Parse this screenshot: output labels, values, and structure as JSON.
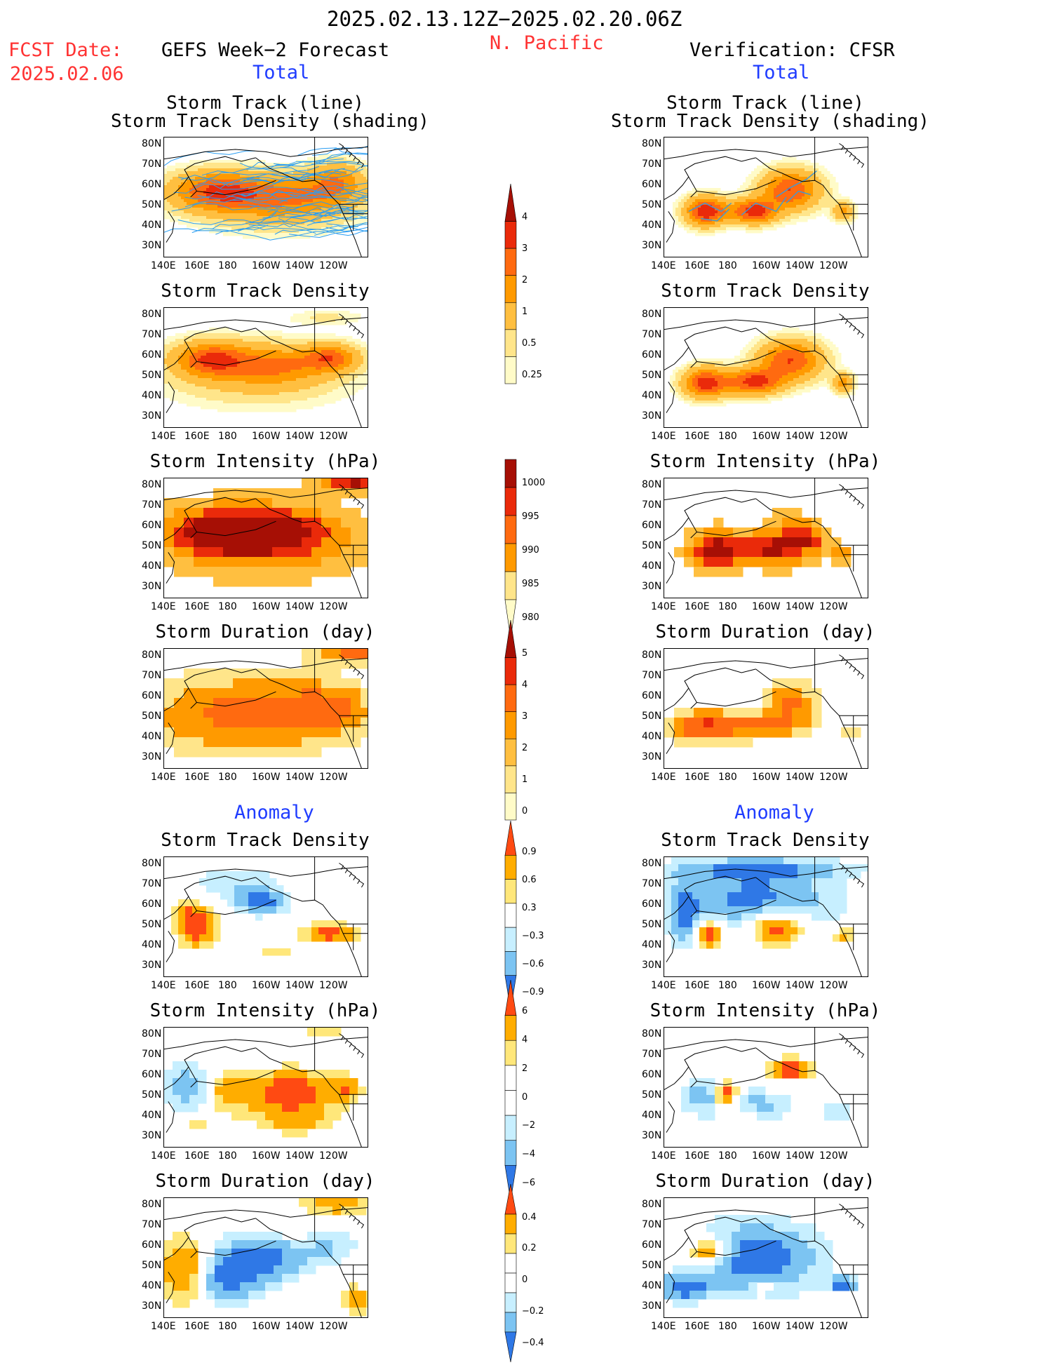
{
  "header": {
    "date_range": "2025.02.13.12Z−2025.02.20.06Z",
    "region": "N. Pacific",
    "fcst_label": "FCST Date:",
    "fcst_date": "2025.02.06",
    "left_title": "GEFS Week−2 Forecast",
    "right_title": "Verification: CFSR",
    "total_label": "Total",
    "anomaly_label": "Anomaly"
  },
  "axes": {
    "lat_ticks": [
      "80N",
      "70N",
      "60N",
      "50N",
      "40N",
      "30N"
    ],
    "lon_ticks": [
      "140E",
      "160E",
      "180",
      "160W",
      "140W",
      "120W"
    ]
  },
  "colors": {
    "pos": [
      "#fffbc8",
      "#ffe58a",
      "#ffbf40",
      "#ff9a00",
      "#ff6a10",
      "#ea2a0a",
      "#a60f05"
    ],
    "anom_pos": [
      "#ffe77a",
      "#ffad00",
      "#ff4a12"
    ],
    "anom_neg": [
      "#c7efff",
      "#7cc4f2",
      "#2f78e6"
    ],
    "track_fcst": "#2a9df2",
    "track_fcst_dense": "#ff4fa0",
    "track_obs": "#3a9ad9"
  },
  "colorbars": [
    {
      "labels": [
        "4",
        "3",
        "2",
        "1",
        "0.5",
        "0.25"
      ]
    },
    {
      "labels": [
        "1000",
        "995",
        "990",
        "985",
        "980"
      ]
    },
    {
      "labels": [
        "5",
        "4",
        "3",
        "2",
        "1",
        "0"
      ]
    },
    {
      "labels": [
        "0.9",
        "0.6",
        "0.3",
        "−0.3",
        "−0.6",
        "−0.9"
      ]
    },
    {
      "labels": [
        "6",
        "4",
        "2",
        "0",
        "−2",
        "−4",
        "−6"
      ]
    },
    {
      "labels": [
        "0.4",
        "0.2",
        "0",
        "−0.2",
        "−0.4"
      ]
    }
  ],
  "panels": {
    "fcst": [
      {
        "title": "Storm Track (line)",
        "title2": "Storm Track Density (shading)"
      },
      {
        "title": "Storm Track Density"
      },
      {
        "title": "Storm Intensity (hPa)"
      },
      {
        "title": "Storm Duration (day)"
      },
      {
        "title": "Storm Track Density"
      },
      {
        "title": "Storm Intensity (hPa)"
      },
      {
        "title": "Storm Duration (day)"
      }
    ],
    "obs": [
      {
        "title": "Storm Track (line)",
        "title2": "Storm Track Density (shading)"
      },
      {
        "title": "Storm Track Density"
      },
      {
        "title": "Storm Intensity (hPa)"
      },
      {
        "title": "Storm Duration (day)"
      },
      {
        "title": "Storm Track Density"
      },
      {
        "title": "Storm Intensity (hPa)"
      },
      {
        "title": "Storm Duration (day)"
      }
    ]
  },
  "chart_data": [
    {
      "type": "heatmap",
      "title": "Storm Track (line) / Storm Track Density (shading)",
      "panel": "GEFS Week-2 Forecast, Total",
      "colorbar": [
        0.25,
        0.5,
        1,
        2,
        3,
        4
      ]
    },
    {
      "type": "heatmap",
      "title": "Storm Track Density",
      "panel": "GEFS Week-2 Forecast, Total",
      "colorbar": [
        0.25,
        0.5,
        1,
        2,
        3,
        4
      ]
    },
    {
      "type": "heatmap",
      "title": "Storm Intensity (hPa)",
      "panel": "GEFS Week-2 Forecast, Total",
      "colorbar": [
        980,
        985,
        990,
        995,
        1000
      ]
    },
    {
      "type": "heatmap",
      "title": "Storm Duration (day)",
      "panel": "GEFS Week-2 Forecast, Total",
      "colorbar": [
        0,
        1,
        2,
        3,
        4,
        5
      ]
    },
    {
      "type": "heatmap",
      "title": "Storm Track Density",
      "panel": "GEFS Week-2 Forecast, Anomaly",
      "colorbar": [
        -0.9,
        -0.6,
        -0.3,
        0.3,
        0.6,
        0.9
      ]
    },
    {
      "type": "heatmap",
      "title": "Storm Intensity (hPa)",
      "panel": "GEFS Week-2 Forecast, Anomaly",
      "colorbar": [
        -6,
        -4,
        -2,
        0,
        2,
        4,
        6
      ]
    },
    {
      "type": "heatmap",
      "title": "Storm Duration (day)",
      "panel": "GEFS Week-2 Forecast, Anomaly",
      "colorbar": [
        -0.4,
        -0.2,
        0,
        0.2,
        0.4
      ]
    },
    {
      "type": "heatmap",
      "title": "Storm Track (line) / Storm Track Density (shading)",
      "panel": "Verification: CFSR, Total",
      "colorbar": [
        0.25,
        0.5,
        1,
        2,
        3,
        4
      ]
    },
    {
      "type": "heatmap",
      "title": "Storm Track Density",
      "panel": "Verification: CFSR, Total",
      "colorbar": [
        0.25,
        0.5,
        1,
        2,
        3,
        4
      ]
    },
    {
      "type": "heatmap",
      "title": "Storm Intensity (hPa)",
      "panel": "Verification: CFSR, Total",
      "colorbar": [
        980,
        985,
        990,
        995,
        1000
      ]
    },
    {
      "type": "heatmap",
      "title": "Storm Duration (day)",
      "panel": "Verification: CFSR, Total",
      "colorbar": [
        0,
        1,
        2,
        3,
        4,
        5
      ]
    },
    {
      "type": "heatmap",
      "title": "Storm Track Density",
      "panel": "Verification: CFSR, Anomaly",
      "colorbar": [
        -0.9,
        -0.6,
        -0.3,
        0.3,
        0.6,
        0.9
      ]
    },
    {
      "type": "heatmap",
      "title": "Storm Intensity (hPa)",
      "panel": "Verification: CFSR, Anomaly",
      "colorbar": [
        -6,
        -4,
        -2,
        0,
        2,
        4,
        6
      ]
    },
    {
      "type": "heatmap",
      "title": "Storm Duration (day)",
      "panel": "Verification: CFSR, Anomaly",
      "colorbar": [
        -0.4,
        -0.2,
        0,
        0.2,
        0.4
      ]
    }
  ]
}
